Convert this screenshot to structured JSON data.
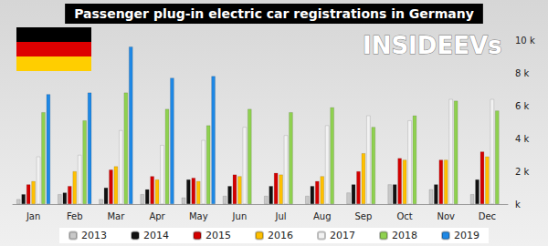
{
  "chart_data": {
    "type": "bar",
    "title": "Passenger plug-in electric car registrations in Germany",
    "annotations": [
      "INSIDEEVs"
    ],
    "categories": [
      "Jan",
      "Feb",
      "Mar",
      "Apr",
      "May",
      "Jun",
      "Jul",
      "Aug",
      "Sep",
      "Oct",
      "Nov",
      "Dec"
    ],
    "series": [
      {
        "name": "2013",
        "color": "#c8c8c8",
        "values": [
          300,
          600,
          300,
          600,
          400,
          500,
          500,
          500,
          700,
          1200,
          900,
          600
        ]
      },
      {
        "name": "2014",
        "color": "#111111",
        "values": [
          600,
          700,
          1000,
          900,
          1500,
          1100,
          1100,
          1100,
          1200,
          1200,
          1200,
          1500
        ]
      },
      {
        "name": "2015",
        "color": "#d40000",
        "values": [
          1200,
          1100,
          2100,
          1700,
          1600,
          1800,
          1900,
          1400,
          2000,
          2800,
          2700,
          3200
        ]
      },
      {
        "name": "2016",
        "color": "#ffc000",
        "values": [
          1400,
          2000,
          2300,
          1500,
          1400,
          1700,
          1800,
          1700,
          3100,
          2700,
          2700,
          2900
        ]
      },
      {
        "name": "2017",
        "color": "#f2f2f2",
        "values": [
          2900,
          3000,
          4500,
          3600,
          3900,
          4700,
          4200,
          4800,
          5400,
          5100,
          6400,
          6400
        ]
      },
      {
        "name": "2018",
        "color": "#8fd14f",
        "values": [
          5600,
          5100,
          6800,
          5800,
          4800,
          5800,
          5600,
          5900,
          4700,
          5400,
          6300,
          5700
        ]
      },
      {
        "name": "2019",
        "color": "#1e88e5",
        "values": [
          6700,
          6800,
          9600,
          7700,
          7800,
          null,
          null,
          null,
          null,
          null,
          null,
          null
        ]
      }
    ],
    "ylim": [
      0,
      10000
    ],
    "yticks": [
      {
        "value": 0,
        "label": "k"
      },
      {
        "value": 2000,
        "label": "2 k"
      },
      {
        "value": 4000,
        "label": "4 k"
      },
      {
        "value": 6000,
        "label": "6 k"
      },
      {
        "value": 8000,
        "label": "8 k"
      },
      {
        "value": 10000,
        "label": "10 k"
      }
    ],
    "grid": false,
    "legend": "bottom"
  }
}
